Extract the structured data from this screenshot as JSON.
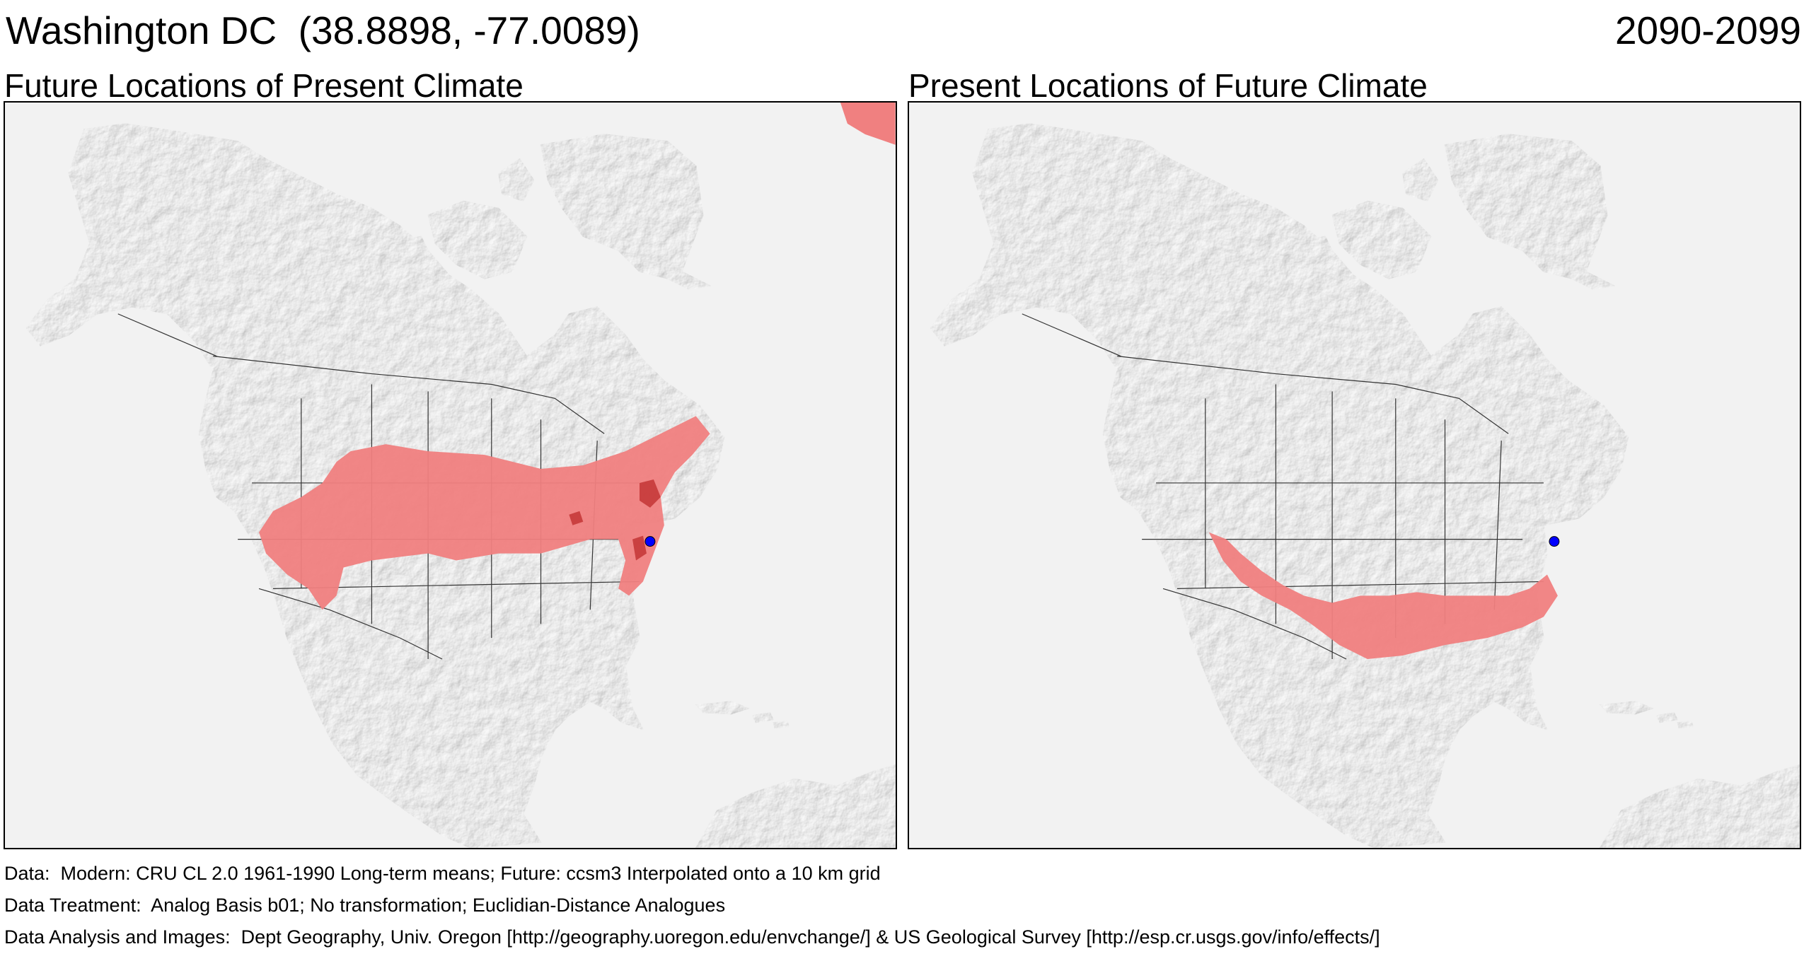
{
  "header": {
    "location": "Washington DC  (38.8898, -77.0089)",
    "period": "2090-2099"
  },
  "panels": [
    {
      "title": "Future Locations of Present Climate",
      "analog_color": "#f08080",
      "analog_dark_color": "#c03030",
      "marker_color": "#0000ff"
    },
    {
      "title": "Present Locations of Future Climate",
      "analog_color": "#f08080",
      "analog_dark_color": "#c03030",
      "marker_color": "#0000ff"
    }
  ],
  "footer": {
    "data": "Data:  Modern: CRU CL 2.0 1961-1990 Long-term means; Future: ccsm3 Interpolated onto a 10 km grid",
    "treatment": "Data Treatment:  Analog Basis b01; No transformation; Euclidian-Distance Analogues",
    "analysis": "Data Analysis and Images:  Dept Geography, Univ. Oregon [http://geography.uoregon.edu/envchange/] & US Geological Survey [http://esp.cr.usgs.gov/info/effects/]"
  }
}
